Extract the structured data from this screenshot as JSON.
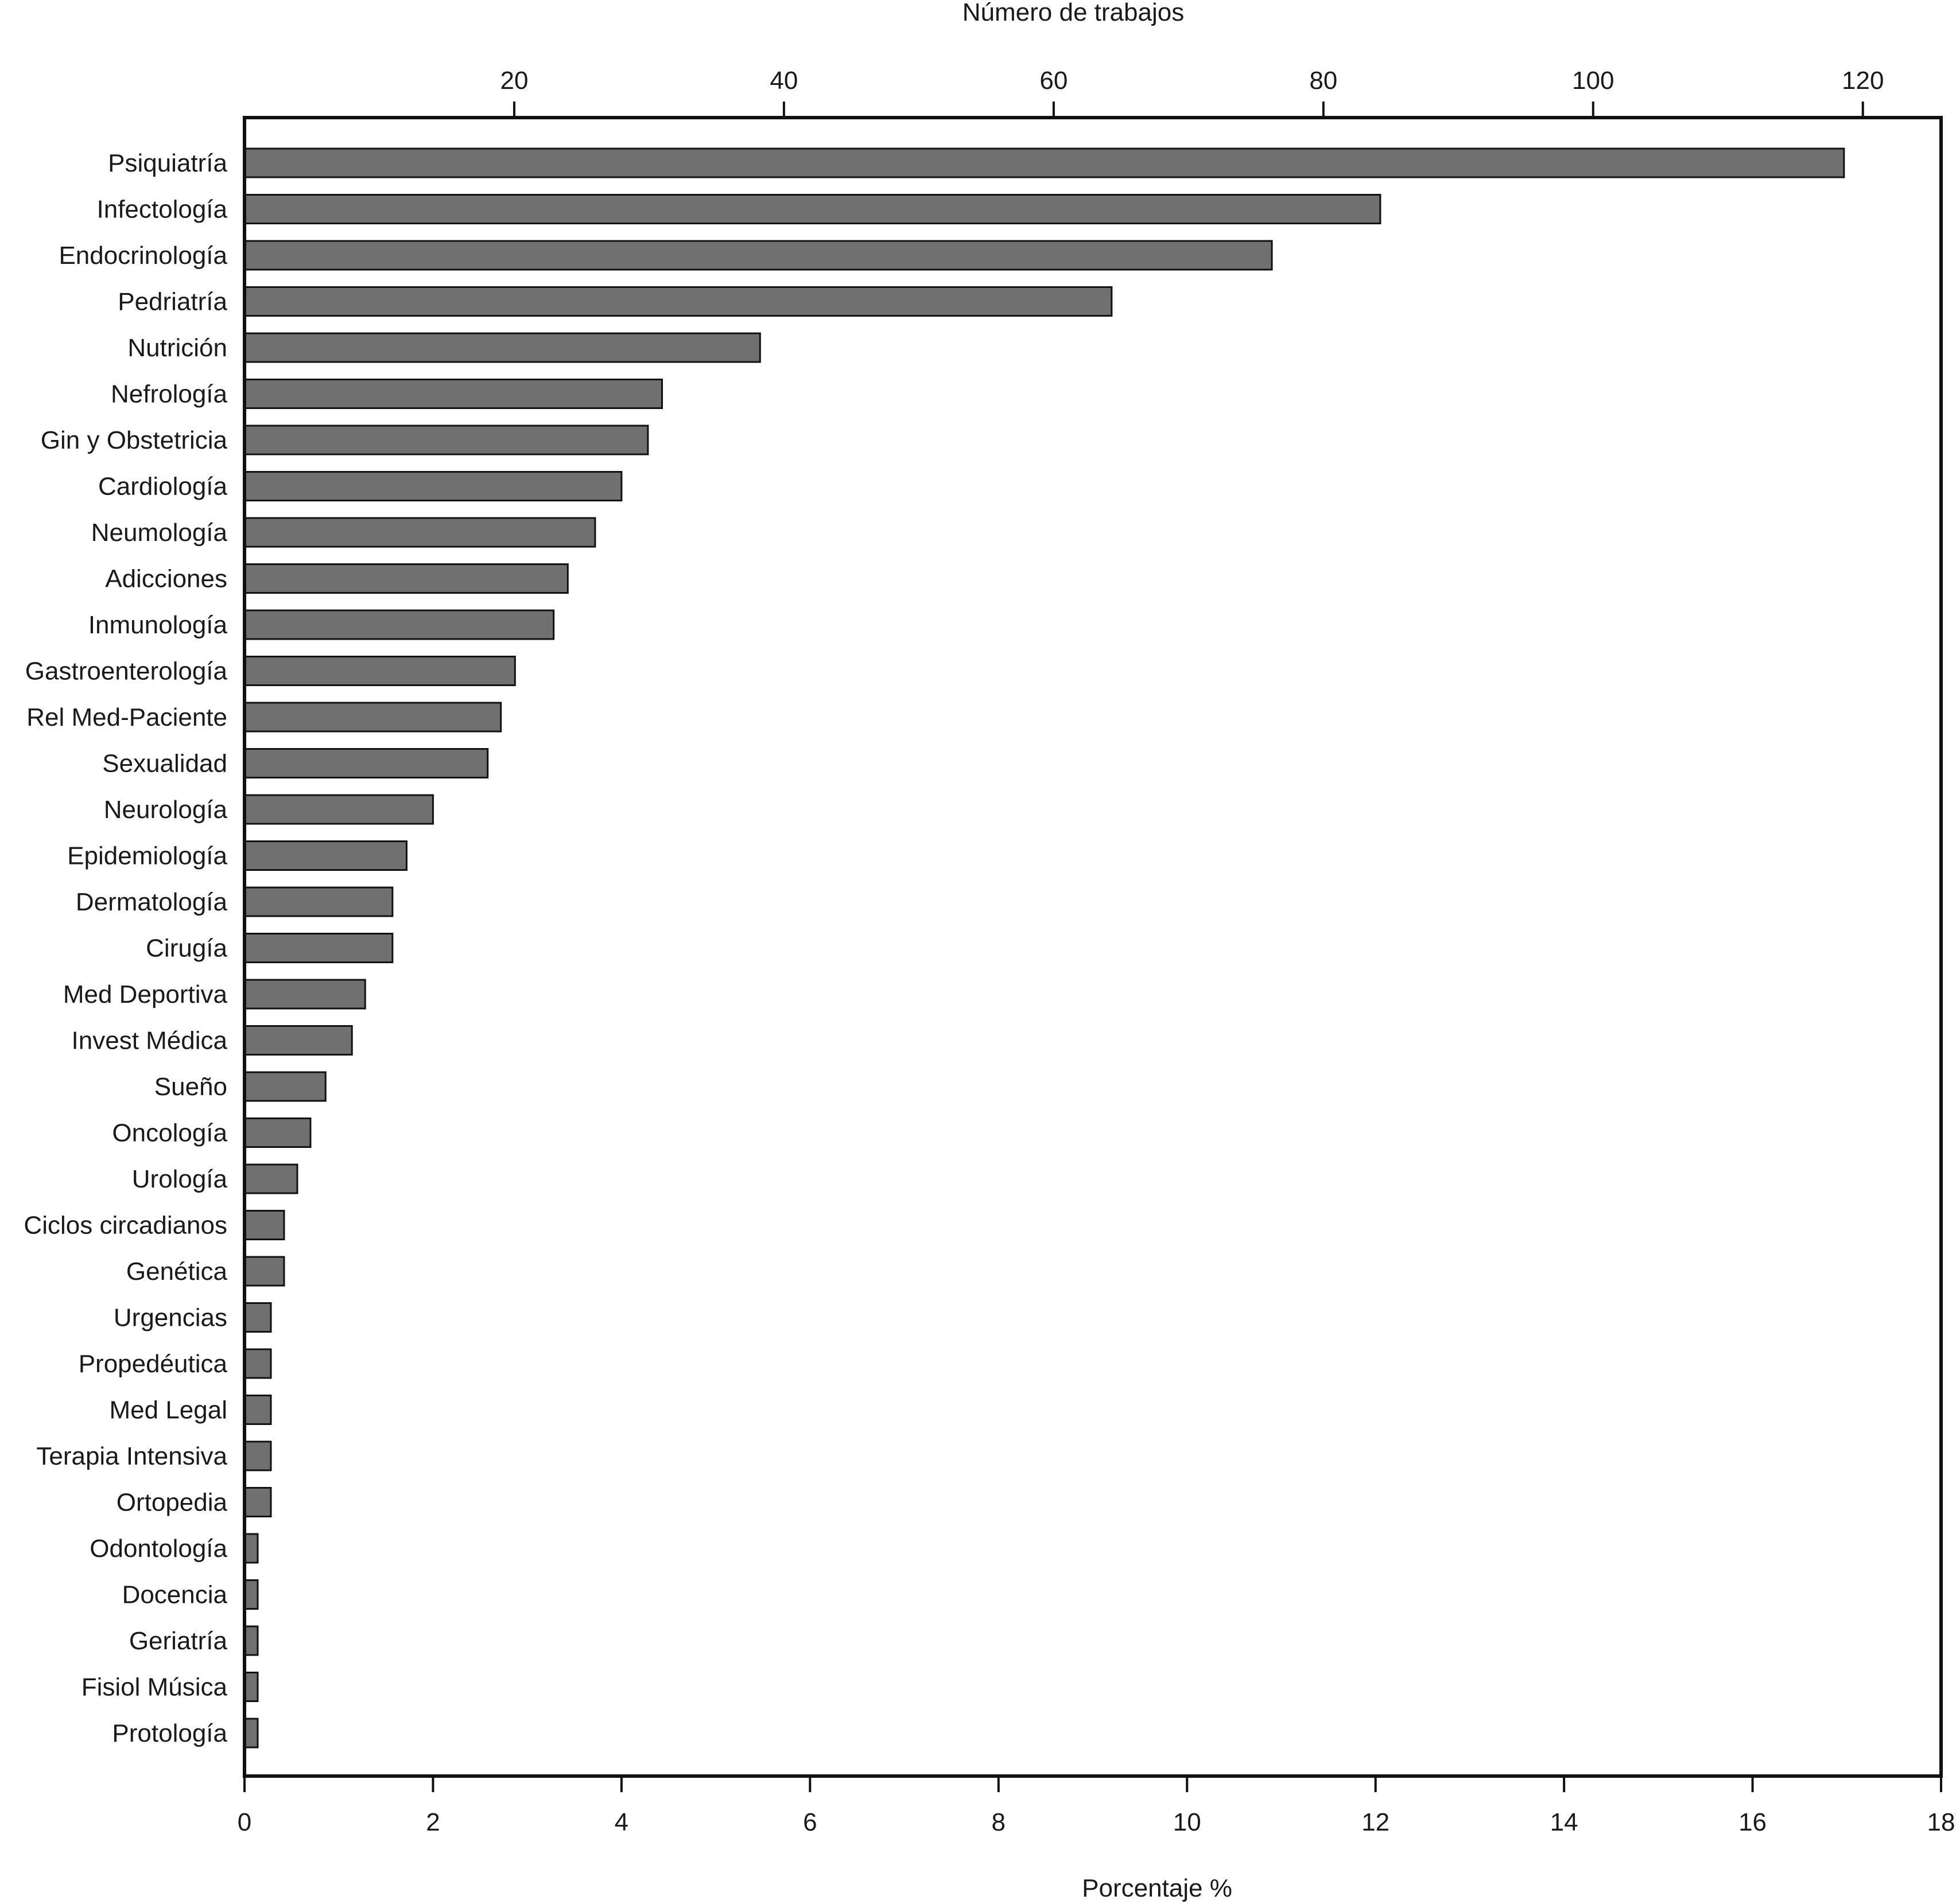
{
  "chart_data": {
    "type": "bar",
    "orientation": "horizontal",
    "top_axis_title": "Número de trabajos",
    "bottom_axis_title": "Porcentaje %",
    "top_ticks": [
      20,
      40,
      60,
      80,
      100,
      120
    ],
    "top_lim": [
      0,
      125.8
    ],
    "bottom_ticks": [
      0,
      2,
      4,
      6,
      8,
      10,
      12,
      14,
      16,
      18
    ],
    "xlim": [
      0,
      18
    ],
    "bar_color": "#707070",
    "categories": [
      "Psiquiatría",
      "Infectología",
      "Endocrinología",
      "Pedriatría",
      "Nutrición",
      "Nefrología",
      "Gin y Obstetricia",
      "Cardiología",
      "Neumología",
      "Adicciones",
      "Inmunología",
      "Gastroenterología",
      "Rel Med-Paciente",
      "Sexualidad",
      "Neurología",
      "Epidemiología",
      "Dermatología",
      "Cirugía",
      "Med Deportiva",
      "Invest Médica",
      "Sueño",
      "Oncología",
      "Urología",
      "Ciclos circadianos",
      "Genética",
      "Urgencias",
      "Propedéutica",
      "Med Legal",
      "Terapia Intensiva",
      "Ortopedia",
      "Odontología",
      "Docencia",
      "Geriatría",
      "Fisiol Música",
      "Protología"
    ],
    "values": [
      16.97,
      12.05,
      10.9,
      9.2,
      5.47,
      4.43,
      4.28,
      4.0,
      3.72,
      3.43,
      3.28,
      2.87,
      2.72,
      2.58,
      2.0,
      1.72,
      1.57,
      1.57,
      1.28,
      1.14,
      0.86,
      0.7,
      0.56,
      0.42,
      0.42,
      0.28,
      0.28,
      0.28,
      0.28,
      0.28,
      0.14,
      0.14,
      0.14,
      0.14,
      0.14
    ]
  }
}
